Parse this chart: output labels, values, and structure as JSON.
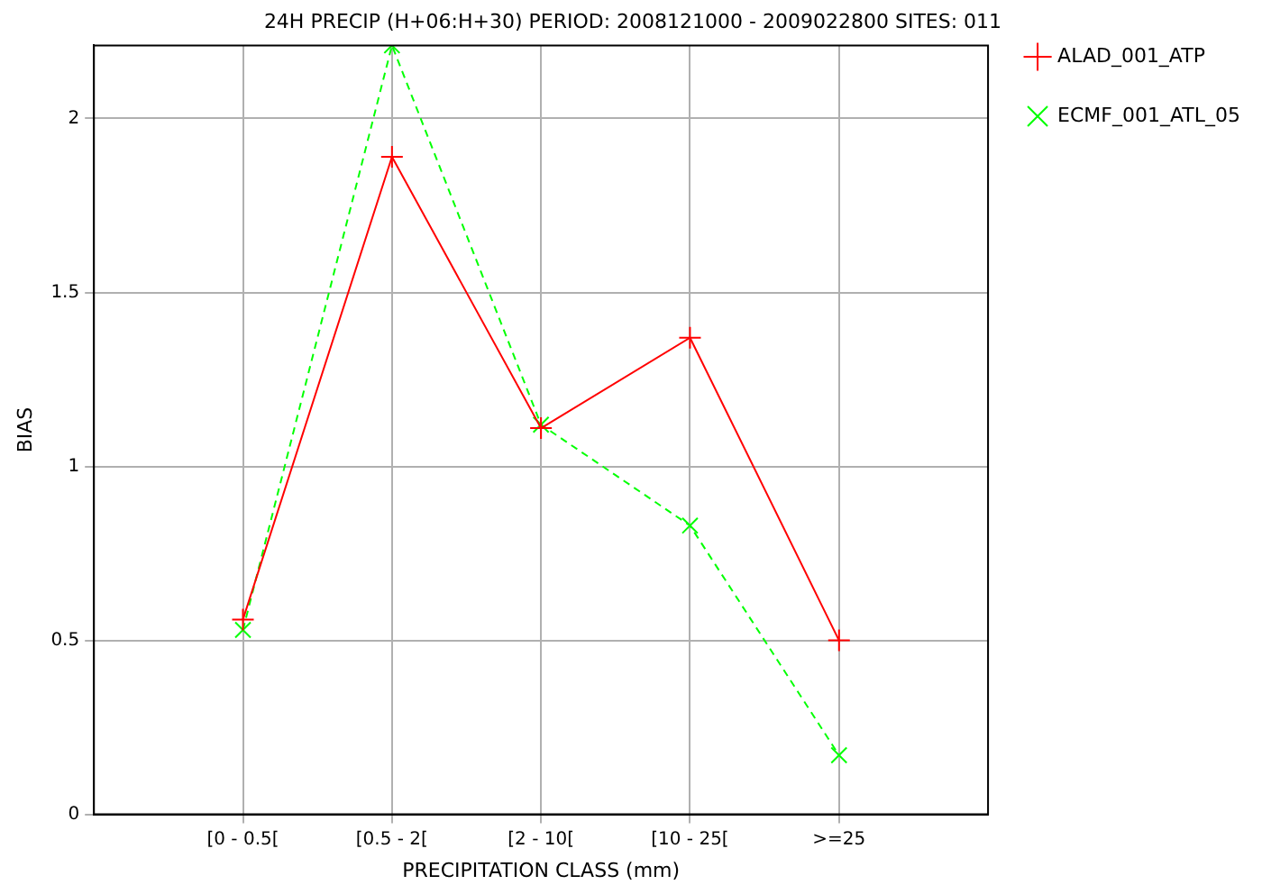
{
  "chart_data": {
    "type": "line",
    "title": "24H PRECIP (H+06:H+30) PERIOD: 2008121000 - 2009022800 SITES: 011",
    "xlabel": "PRECIPITATION CLASS (mm)",
    "ylabel": "BIAS",
    "categories": [
      "[0 - 0.5[",
      "[0.5 - 2[",
      "[2 - 10[",
      "[10 - 25[",
      ">=25"
    ],
    "series": [
      {
        "name": "ALAD_001_ATP",
        "color": "#ff0000",
        "values": [
          0.56,
          1.89,
          1.11,
          1.37,
          0.5
        ],
        "marker": "cross",
        "line_style": "solid"
      },
      {
        "name": "ECMF_001_ATL_05",
        "color": "#00ff00",
        "values": [
          0.53,
          2.21,
          1.12,
          0.83,
          0.17
        ],
        "marker": "cross",
        "line_style": "dashed"
      }
    ],
    "ylim": [
      0,
      2.21
    ],
    "yticks": [
      0,
      0.5,
      1,
      1.5,
      2
    ],
    "grid": true,
    "legend": "top right"
  }
}
